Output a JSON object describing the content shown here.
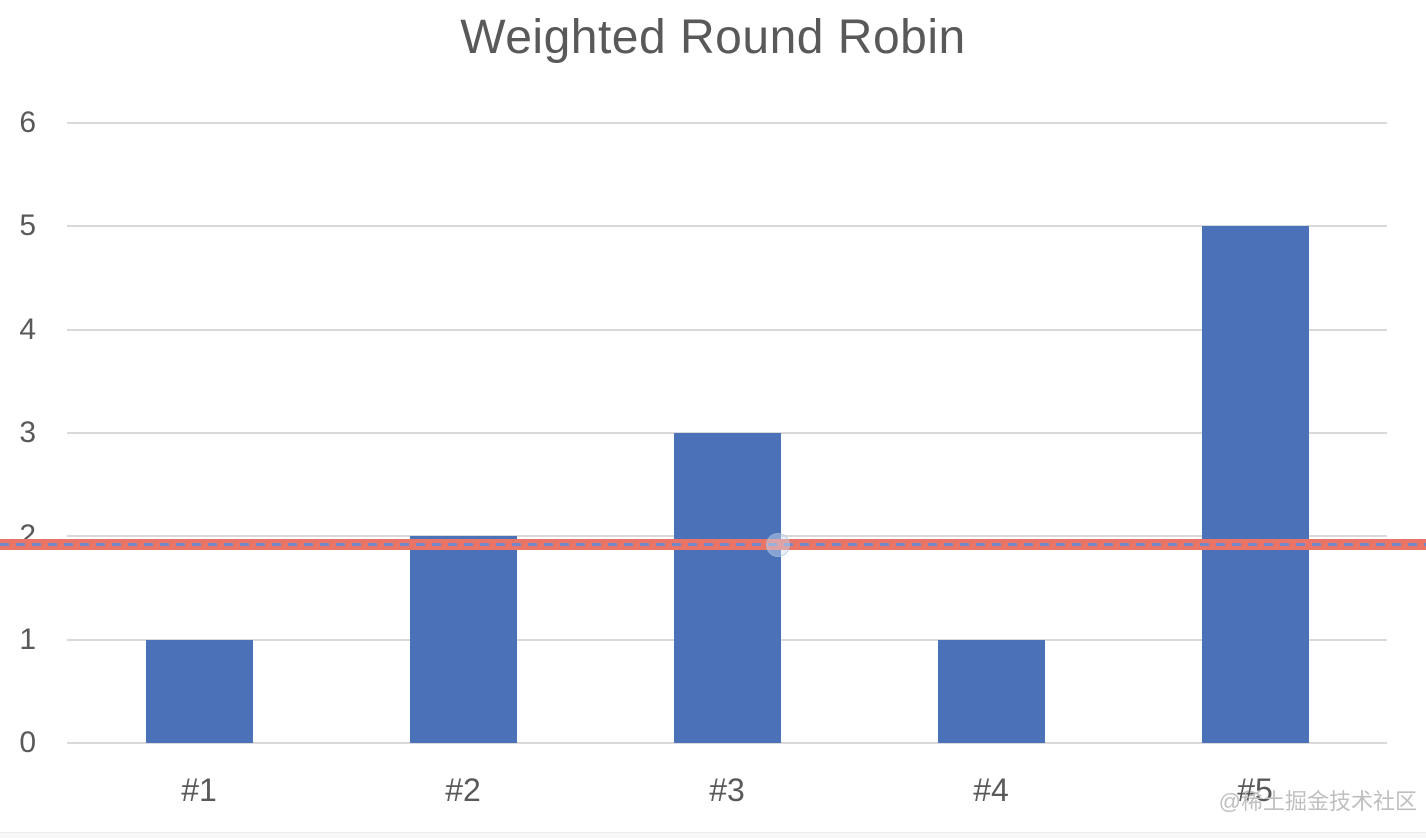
{
  "watermark": {
    "text": "@稀土掘金技术社区"
  },
  "chart_data": {
    "type": "bar",
    "title": "Weighted Round Robin",
    "categories": [
      "#1",
      "#2",
      "#3",
      "#4",
      "#5"
    ],
    "values": [
      1,
      2,
      3,
      1,
      5
    ],
    "xlabel": "",
    "ylabel": "",
    "y_ticks": [
      0,
      1,
      2,
      3,
      4,
      5,
      6
    ],
    "ylim": [
      0,
      6
    ],
    "grid": "horizontal-only",
    "legend": "none",
    "colors": {
      "bar": "#4b72b8",
      "gridline": "#d9d9d9",
      "axis_text": "#595959",
      "title_text": "#595959",
      "reference_line_solid": "#e97568",
      "reference_line_dash": "#7189ca",
      "watermark_text": "#bfbfbf"
    },
    "reference_line": {
      "y": 1.92,
      "style": "solid salmon band with blue dashed centerline, spans full image width, drawn over bars, faint circular handle near midpoint"
    }
  }
}
